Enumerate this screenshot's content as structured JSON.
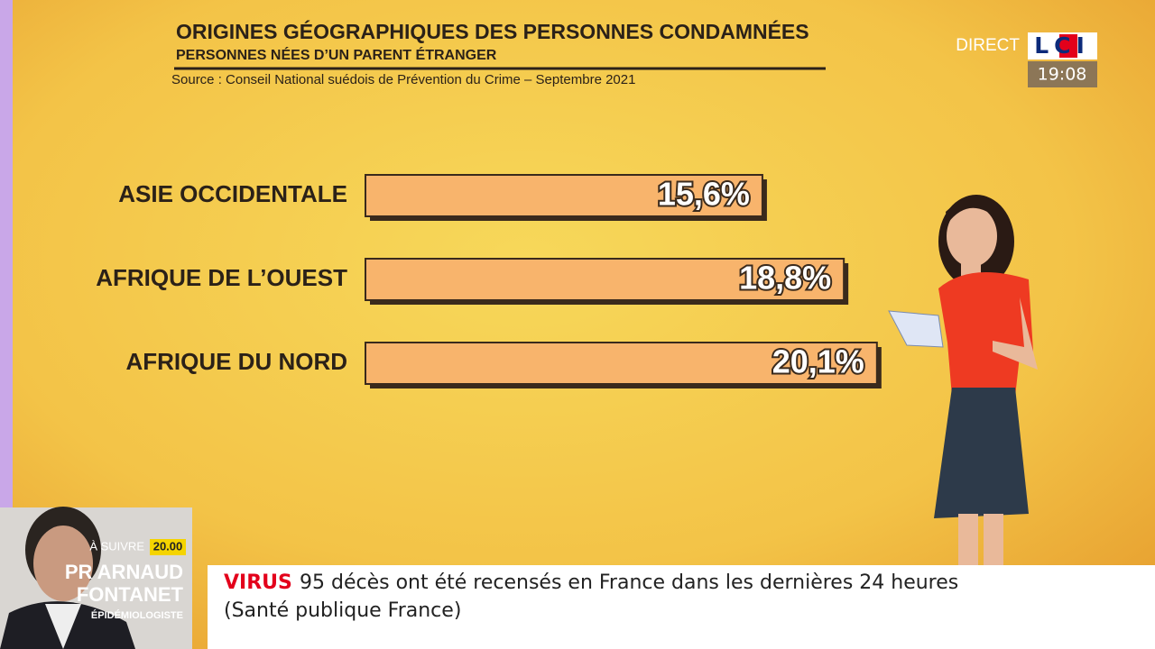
{
  "chart_data": {
    "type": "bar",
    "orientation": "horizontal",
    "title": "ORIGINES GÉOGRAPHIQUES DES PERSONNES CONDAMNÉES",
    "subtitle": "PERSONNES NÉES D’UN PARENT ÉTRANGER",
    "source": "Source : Conseil National suédois de Prévention du Crime – Septembre 2021",
    "categories": [
      "ASIE OCCIDENTALE",
      "AFRIQUE DE L’OUEST",
      "AFRIQUE DU NORD"
    ],
    "values": [
      15.6,
      18.8,
      20.1
    ],
    "value_labels": [
      "15,6%",
      "18,8%",
      "20,1%"
    ],
    "color": "#f8b46c"
  },
  "broadcast": {
    "live": "DIRECT",
    "channel": "LCI",
    "time": "19:08",
    "next_label": "À SUIVRE",
    "next_time": "20.00",
    "guest_name": [
      "PR ARNAUD",
      "FONTANET"
    ],
    "guest_role": "ÉPIDÉMIOLOGISTE",
    "ticker_tag": "VIRUS",
    "ticker_text": [
      "95 décès ont été recensés en France dans les dernières 24 heures",
      "(Santé publique France)"
    ]
  }
}
